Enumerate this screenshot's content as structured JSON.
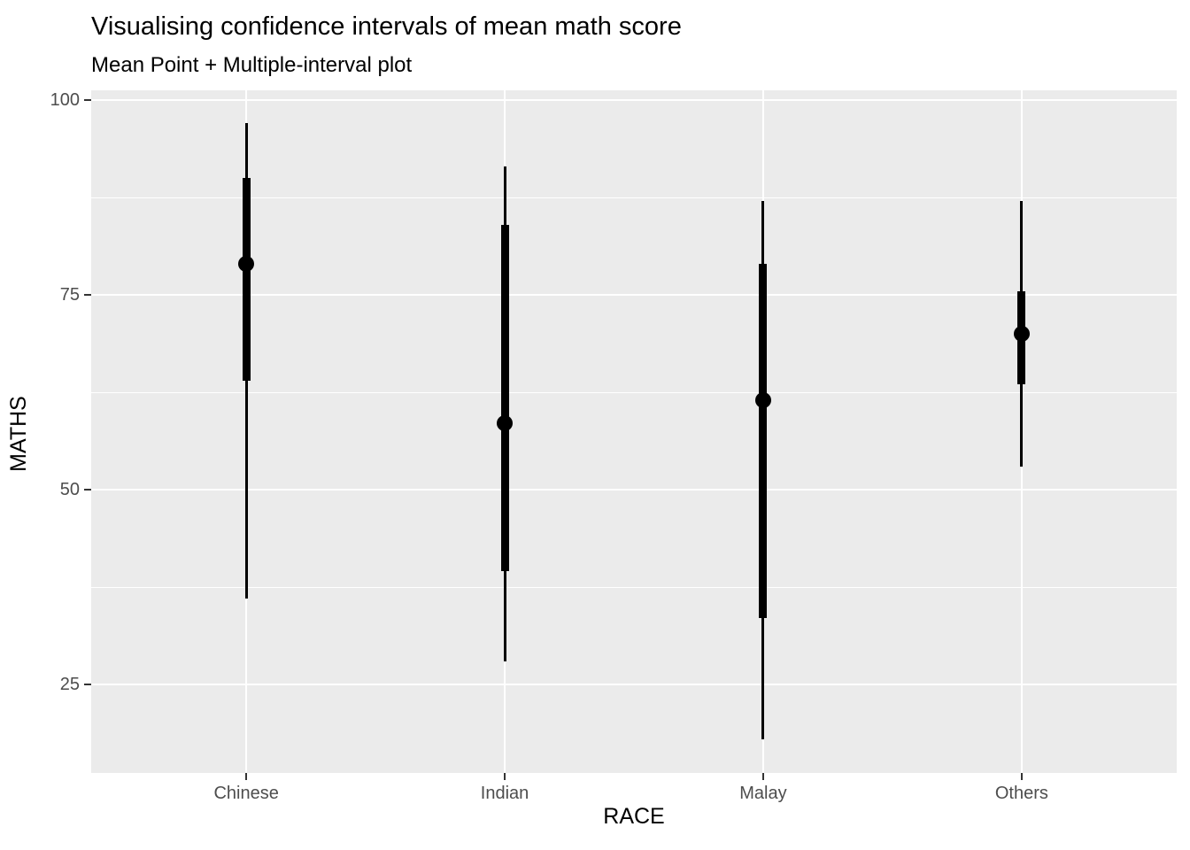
{
  "chart_data": {
    "type": "pointrange",
    "title": "Visualising confidence intervals of mean math score",
    "subtitle": "Mean Point + Multiple-interval plot",
    "xlabel": "RACE",
    "ylabel": "MATHS",
    "categories": [
      "Chinese",
      "Indian",
      "Malay",
      "Others"
    ],
    "series": [
      {
        "name": "mean",
        "values": [
          79,
          58.5,
          61.5,
          70
        ]
      },
      {
        "name": "inner_interval_low",
        "values": [
          64,
          39.5,
          33.5,
          63.5
        ]
      },
      {
        "name": "inner_interval_high",
        "values": [
          90,
          84,
          79,
          75.5
        ]
      },
      {
        "name": "outer_interval_low",
        "values": [
          36,
          28,
          18,
          53
        ]
      },
      {
        "name": "outer_interval_high",
        "values": [
          97,
          91.5,
          87,
          87
        ]
      }
    ],
    "y_ticks": [
      100,
      75,
      50,
      25
    ],
    "y_minor_ticks": [
      87.5,
      62.5,
      37.5
    ],
    "ylim": [
      13.6,
      101.3
    ],
    "grid": true,
    "legend": "none",
    "colors": {
      "panel_background": "#EBEBEB",
      "gridline": "#FFFFFF",
      "data": "#000000",
      "axis_text": "#4D4D4D",
      "tick_mark": "#333333",
      "title_text": "#000000"
    }
  }
}
